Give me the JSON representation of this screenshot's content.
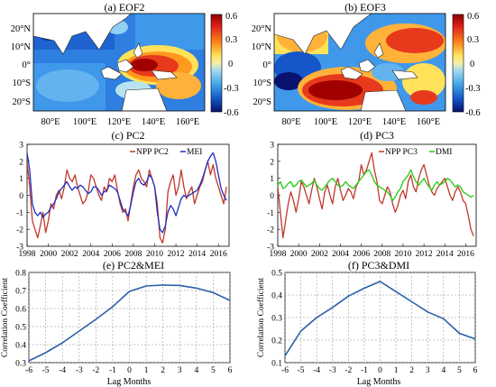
{
  "panels": {
    "a": {
      "title": "(a) EOF2"
    },
    "b": {
      "title": "(b) EOF3"
    },
    "c": {
      "title": "(c) PC2"
    },
    "d": {
      "title": "(d) PC3"
    },
    "e": {
      "title": "(e) PC2&MEI"
    },
    "f": {
      "title": "(f) PC3&DMI"
    }
  },
  "colors": {
    "npp": "#c0392b",
    "mei": "#1f2fbf",
    "dmi": "#22cc11",
    "corr": "#2a5fa8",
    "land": "#ffffff",
    "coast": "#222222"
  },
  "chart_data": [
    {
      "id": "a",
      "type": "heatmap",
      "title": "(a) EOF2",
      "x_ticks": [
        "80°E",
        "100°E",
        "120°E",
        "140°E",
        "160°E"
      ],
      "y_ticks": [
        "20°N",
        "10°N",
        "0°",
        "10°S",
        "20°S"
      ],
      "x_range": [
        70,
        170
      ],
      "y_range": [
        -25,
        25
      ],
      "colorbar": {
        "ticks": [
          "0.6",
          "0.3",
          "0",
          "-0.3",
          "-0.6"
        ],
        "range": [
          -0.6,
          0.6
        ]
      },
      "pattern": "positive loadings in the western Pacific warm pool (120°E-165°E, 15°S-15°N); negative across the tropical Indian Ocean and northwest Pacific"
    },
    {
      "id": "b",
      "type": "heatmap",
      "title": "(b) EOF3",
      "x_ticks": [
        "80°E",
        "100°E",
        "120°E",
        "140°E",
        "160°E"
      ],
      "y_ticks": [
        "20°N",
        "10°N",
        "0°",
        "10°S",
        "20°S"
      ],
      "x_range": [
        70,
        170
      ],
      "y_range": [
        -25,
        25
      ],
      "colorbar": {
        "ticks": [
          "0.6",
          "0.3",
          "0",
          "-0.3",
          "-0.6"
        ],
        "range": [
          -0.6,
          0.6
        ]
      },
      "pattern": "positive loadings in the southeastern Indian Ocean (90°E-125°E, 0-20°S) and northwest Pacific; negative in the central Indian Ocean and Maritime Continent"
    },
    {
      "id": "c",
      "type": "line",
      "title": "(c) PC2",
      "x_ticks": [
        "1998",
        "2000",
        "2002",
        "2004",
        "2006",
        "2008",
        "2010",
        "2012",
        "2014",
        "2016"
      ],
      "y_ticks": [
        "3",
        "2",
        "1",
        "0",
        "-1",
        "-2",
        "-3"
      ],
      "xlim": [
        1998,
        2017
      ],
      "ylim": [
        -3,
        3
      ],
      "series": [
        {
          "name": "NPP PC2",
          "x_start": 1998,
          "step": 0.25,
          "values": [
            2.0,
            0.5,
            -1.5,
            -2.0,
            -2.5,
            -1.8,
            -1.0,
            -2.2,
            -1.5,
            -0.5,
            -0.8,
            0.0,
            0.3,
            -0.2,
            0.5,
            1.5,
            1.0,
            0.8,
            1.2,
            0.5,
            0.0,
            -0.5,
            -0.3,
            0.2,
            1.2,
            1.0,
            0.5,
            0.0,
            -0.3,
            0.5,
            0.2,
            1.0,
            0.8,
            1.2,
            0.3,
            -0.5,
            -1.0,
            -0.8,
            -1.5,
            -0.5,
            0.5,
            1.2,
            1.5,
            1.0,
            0.8,
            0.5,
            1.5,
            1.0,
            0.5,
            -0.5,
            -2.5,
            -2.8,
            -2.0,
            0.2,
            0.8,
            1.2,
            0.0,
            0.5,
            1.5,
            0.5,
            -0.2,
            0.2,
            0.5,
            -0.5,
            0.0,
            0.5,
            0.8,
            1.5,
            2.0,
            1.2,
            1.8,
            1.0,
            0.5,
            0.0,
            -0.5,
            0.5
          ]
        },
        {
          "name": "MEI",
          "x_start": 1998,
          "step": 0.25,
          "values": [
            2.5,
            1.5,
            -0.5,
            -1.0,
            -1.2,
            -1.0,
            -1.3,
            -1.1,
            -1.0,
            -0.7,
            -0.5,
            -0.2,
            0.2,
            0.4,
            0.6,
            0.8,
            0.5,
            0.3,
            0.5,
            0.4,
            0.6,
            0.5,
            0.3,
            0.1,
            0.2,
            0.5,
            0.5,
            0.3,
            0.0,
            0.2,
            0.3,
            0.6,
            0.5,
            0.4,
            0.2,
            -0.3,
            -0.8,
            -1.0,
            -1.2,
            -0.6,
            0.2,
            0.8,
            1.0,
            0.7,
            0.6,
            0.8,
            1.2,
            1.0,
            0.5,
            -1.0,
            -2.0,
            -2.2,
            -1.8,
            -1.0,
            -0.6,
            -0.8,
            -1.2,
            -0.7,
            -0.2,
            0.0,
            -0.1,
            0.0,
            0.1,
            0.2,
            0.3,
            0.6,
            1.0,
            1.5,
            2.0,
            2.3,
            2.5,
            2.0,
            1.2,
            0.4,
            0.0,
            -0.3
          ]
        }
      ]
    },
    {
      "id": "d",
      "type": "line",
      "title": "(d) PC3",
      "x_ticks": [
        "1998",
        "2000",
        "2002",
        "2004",
        "2006",
        "2008",
        "2010",
        "2012",
        "2014",
        "2016"
      ],
      "y_ticks": [
        "3",
        "2",
        "1",
        "0",
        "-1",
        "-2",
        "-3"
      ],
      "xlim": [
        1998,
        2017
      ],
      "ylim": [
        -3,
        3
      ],
      "series": [
        {
          "name": "NPP PC3",
          "x_start": 1998,
          "step": 0.25,
          "values": [
            0.5,
            -1.0,
            -2.5,
            -1.5,
            -0.5,
            0.2,
            -0.3,
            -1.0,
            -0.2,
            0.8,
            0.5,
            0.0,
            -0.5,
            0.3,
            1.0,
            0.5,
            -0.2,
            -0.8,
            0.2,
            0.6,
            0.0,
            -0.5,
            0.5,
            1.0,
            0.3,
            -0.3,
            0.0,
            0.4,
            0.2,
            -0.2,
            0.5,
            0.8,
            1.8,
            1.2,
            1.5,
            2.0,
            2.5,
            1.5,
            0.8,
            -0.3,
            -0.5,
            0.0,
            0.5,
            0.2,
            -0.5,
            -1.0,
            -0.6,
            0.0,
            0.3,
            -0.2,
            0.8,
            1.2,
            0.5,
            0.2,
            1.0,
            1.5,
            1.8,
            1.2,
            0.6,
            0.2,
            0.0,
            0.4,
            0.6,
            0.8,
            1.0,
            0.5,
            0.0,
            -0.3,
            0.2,
            0.5,
            0.2,
            -0.3,
            -0.5,
            -1.2,
            -2.0,
            -2.4
          ]
        },
        {
          "name": "DMI",
          "x_start": 1998,
          "step": 0.25,
          "values": [
            0.6,
            0.8,
            0.4,
            0.5,
            0.7,
            0.8,
            0.5,
            0.6,
            0.8,
            0.9,
            0.7,
            0.5,
            0.6,
            0.7,
            0.9,
            0.6,
            0.4,
            0.3,
            0.5,
            0.7,
            0.9,
            1.0,
            0.8,
            0.6,
            0.5,
            0.6,
            0.8,
            0.6,
            0.5,
            0.4,
            0.6,
            0.8,
            1.0,
            1.2,
            1.4,
            1.5,
            1.2,
            0.8,
            0.6,
            0.5,
            0.4,
            0.3,
            0.2,
            0.0,
            -0.3,
            -0.1,
            0.2,
            0.4,
            0.8,
            1.0,
            1.2,
            1.5,
            1.1,
            0.8,
            0.6,
            0.8,
            1.0,
            0.7,
            0.5,
            0.3,
            0.6,
            0.8,
            0.6,
            0.7,
            0.8,
            1.0,
            0.9,
            0.7,
            0.5,
            0.6,
            0.5,
            0.2,
            0.1,
            0.0,
            -0.1,
            0.0
          ]
        }
      ]
    },
    {
      "id": "e",
      "type": "line",
      "title": "(e) PC2&MEI",
      "xlabel": "Lag Months",
      "ylabel": "Correlation Coefficient",
      "x": [
        -6,
        -5,
        -4,
        -3,
        -2,
        -1,
        0,
        1,
        2,
        3,
        4,
        5,
        6
      ],
      "x_ticks": [
        "-6",
        "-5",
        "-4",
        "-3",
        "-2",
        "-1",
        "0",
        "1",
        "2",
        "3",
        "4",
        "5",
        "6"
      ],
      "y_ticks": [
        "0.3",
        "0.4",
        "0.5",
        "0.6",
        "0.7",
        "0.8"
      ],
      "xlim": [
        -6,
        6
      ],
      "ylim": [
        0.3,
        0.8
      ],
      "grid": true,
      "series": [
        {
          "values": [
            0.31,
            0.355,
            0.41,
            0.475,
            0.54,
            0.61,
            0.695,
            0.725,
            0.73,
            0.728,
            0.713,
            0.688,
            0.645
          ]
        }
      ]
    },
    {
      "id": "f",
      "type": "line",
      "title": "(f) PC3&DMI",
      "xlabel": "Lag Months",
      "ylabel": "Correlation Coefficient",
      "x": [
        -6,
        -5,
        -4,
        -3,
        -2,
        -1,
        0,
        1,
        2,
        3,
        4,
        5,
        6
      ],
      "x_ticks": [
        "-6",
        "-5",
        "-4",
        "-3",
        "-2",
        "-1",
        "0",
        "1",
        "2",
        "3",
        "4",
        "5",
        "6"
      ],
      "y_ticks": [
        "0.1",
        "0.2",
        "0.3",
        "0.4",
        "0.5"
      ],
      "xlim": [
        -6,
        6
      ],
      "ylim": [
        0.1,
        0.5
      ],
      "grid": true,
      "series": [
        {
          "values": [
            0.13,
            0.24,
            0.3,
            0.345,
            0.395,
            0.43,
            0.46,
            0.415,
            0.37,
            0.325,
            0.295,
            0.23,
            0.205
          ]
        }
      ]
    }
  ]
}
